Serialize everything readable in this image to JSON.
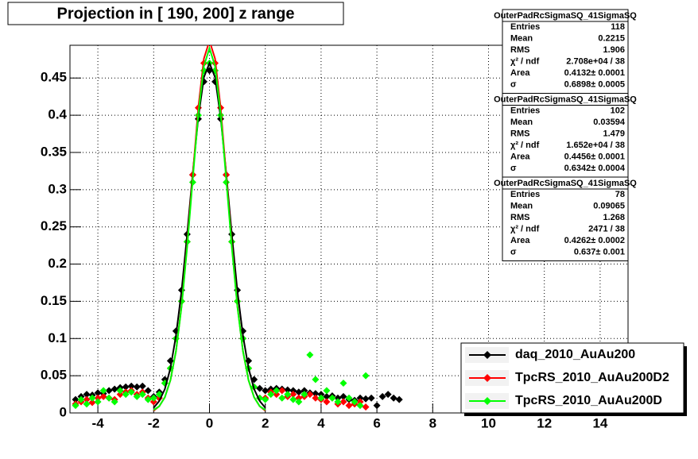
{
  "chart_data": {
    "type": "scatter",
    "title": "Projection in [ 190, 200] z range",
    "xlim": [
      -5,
      15
    ],
    "xticks": [
      -4,
      -2,
      0,
      2,
      4,
      6,
      8,
      10,
      12,
      14
    ],
    "ylim": [
      0,
      0.494
    ],
    "yticks": [
      0,
      0.05,
      0.1,
      0.15,
      0.2,
      0.25,
      0.3,
      0.35,
      0.4,
      0.45
    ],
    "grid": true,
    "x": [
      -4.8,
      -4.6,
      -4.4,
      -4.2,
      -4,
      -3.8,
      -3.6,
      -3.4,
      -3.2,
      -3,
      -2.8,
      -2.6,
      -2.4,
      -2.2,
      -2,
      -1.8,
      -1.6,
      -1.4,
      -1.2,
      -1,
      -0.8,
      -0.6,
      -0.4,
      -0.2,
      0,
      0.2,
      0.4,
      0.6,
      0.8,
      1,
      1.2,
      1.4,
      1.6,
      1.8,
      2,
      2.2,
      2.4,
      2.6,
      2.8,
      3,
      3.2,
      3.4,
      3.6,
      3.8,
      4,
      4.2,
      4.4,
      4.6,
      4.8,
      5,
      5.2,
      5.4,
      5.6,
      5.8,
      6,
      6.2,
      6.4,
      6.6,
      6.8
    ],
    "fit_x": [
      -2,
      -1.8,
      -1.6,
      -1.4,
      -1.2,
      -1,
      -0.8,
      -0.6,
      -0.4,
      -0.2,
      0,
      0.2,
      0.4,
      0.6,
      0.8,
      1,
      1.2,
      1.4,
      1.6,
      1.8,
      2
    ],
    "series": [
      {
        "name": "daq_2010_AuAu200",
        "color": "#000000",
        "values": [
          0.018,
          0.022,
          0.025,
          0.024,
          0.027,
          0.026,
          0.03,
          0.032,
          0.034,
          0.035,
          0.036,
          0.035,
          0.036,
          0.03,
          0.022,
          0.028,
          0.045,
          0.07,
          0.11,
          0.165,
          0.24,
          0.32,
          0.395,
          0.445,
          0.46,
          0.445,
          0.395,
          0.32,
          0.24,
          0.165,
          0.11,
          0.07,
          0.045,
          0.033,
          0.03,
          0.032,
          0.033,
          0.032,
          0.031,
          0.03,
          0.028,
          0.03,
          0.027,
          0.026,
          0.025,
          0.022,
          0.023,
          0.02,
          0.022,
          0.018,
          0.017,
          0.02,
          0.019,
          0.02,
          0.01,
          0.022,
          0.025,
          0.02,
          0.018
        ],
        "fit": [
          0.007,
          0.016,
          0.032,
          0.06,
          0.104,
          0.164,
          0.24,
          0.322,
          0.397,
          0.451,
          0.47,
          0.451,
          0.397,
          0.322,
          0.24,
          0.164,
          0.104,
          0.06,
          0.032,
          0.016,
          0.007
        ]
      },
      {
        "name": "TpcRS_2010_AuAu200D2",
        "color": "#ff0000",
        "values": [
          0.012,
          0.015,
          0.018,
          0.014,
          0.02,
          0.022,
          0.02,
          0.018,
          0.025,
          0.028,
          0.03,
          0.025,
          0.028,
          0.02,
          0.015,
          0.02,
          0.04,
          0.06,
          0.1,
          0.15,
          0.23,
          0.32,
          0.41,
          0.47,
          0.5,
          0.47,
          0.41,
          0.32,
          0.23,
          0.15,
          0.1,
          0.06,
          0.035,
          0.02,
          0.02,
          0.028,
          0.025,
          0.03,
          0.022,
          0.025,
          0.02,
          0.022,
          0.025,
          0.02,
          0.018,
          0.015,
          0.02,
          0.012,
          0.015,
          0.01,
          0.012,
          0.015,
          0.008,
          null,
          null,
          null,
          null,
          null,
          null
        ],
        "fit": [
          0.003,
          0.009,
          0.021,
          0.044,
          0.083,
          0.144,
          0.226,
          0.319,
          0.41,
          0.476,
          0.5,
          0.476,
          0.41,
          0.319,
          0.226,
          0.144,
          0.083,
          0.044,
          0.021,
          0.009,
          0.003
        ]
      },
      {
        "name": "TpcRS_2010_AuAu200D",
        "color": "#00ff00",
        "values": [
          0.01,
          0.018,
          0.012,
          0.02,
          0.015,
          0.03,
          0.02,
          0.015,
          0.03,
          0.025,
          0.028,
          0.022,
          0.025,
          0.018,
          0.02,
          0.025,
          0.04,
          0.06,
          0.1,
          0.15,
          0.23,
          0.31,
          0.4,
          0.46,
          0.47,
          0.46,
          0.4,
          0.31,
          0.23,
          0.15,
          0.1,
          0.06,
          0.035,
          0.02,
          0.018,
          0.025,
          0.03,
          0.02,
          0.025,
          0.018,
          0.015,
          0.025,
          0.078,
          0.045,
          0.02,
          0.03,
          0.02,
          0.015,
          0.04,
          0.02,
          0.015,
          0.01,
          0.05,
          null,
          null,
          null,
          null,
          null,
          null
        ],
        "fit": [
          0.004,
          0.009,
          0.021,
          0.044,
          0.083,
          0.143,
          0.223,
          0.314,
          0.402,
          0.466,
          0.49,
          0.466,
          0.402,
          0.314,
          0.223,
          0.143,
          0.083,
          0.044,
          0.021,
          0.009,
          0.004
        ]
      }
    ],
    "stats_boxes": [
      {
        "title": "OuterPadRcSigmaSQ_41SigmaSQ",
        "rows": [
          [
            "Entries",
            "118"
          ],
          [
            "Mean",
            "0.2215"
          ],
          [
            "RMS",
            "1.906"
          ],
          [
            "χ² / ndf",
            "2.708e+04 / 38"
          ],
          [
            "Area",
            "0.4132± 0.0001"
          ],
          [
            "σ",
            "0.6898± 0.0005"
          ]
        ]
      },
      {
        "title": "OuterPadRcSigmaSQ_41SigmaSQ",
        "rows": [
          [
            "Entries",
            "102"
          ],
          [
            "Mean",
            "0.03594"
          ],
          [
            "RMS",
            "1.479"
          ],
          [
            "χ² / ndf",
            "1.652e+04 / 38"
          ],
          [
            "Area",
            "0.4456± 0.0001"
          ],
          [
            "σ",
            "0.6342± 0.0004"
          ]
        ]
      },
      {
        "title": "OuterPadRcSigmaSQ_41SigmaSQ",
        "rows": [
          [
            "Entries",
            "78"
          ],
          [
            "Mean",
            "0.09065"
          ],
          [
            "RMS",
            "1.268"
          ],
          [
            "χ² / ndf",
            "2471 / 38"
          ],
          [
            "Area",
            "0.4262± 0.0002"
          ],
          [
            "σ",
            "0.637± 0.001"
          ]
        ]
      }
    ]
  }
}
